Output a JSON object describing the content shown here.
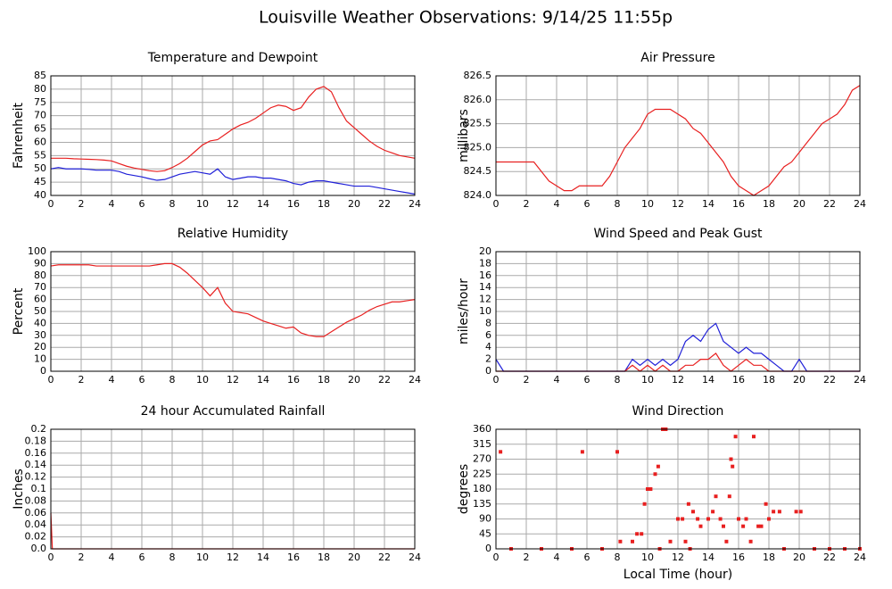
{
  "title": "Louisville Weather Observations: 9/14/25 11:55p",
  "chart_data": [
    {
      "type": "line",
      "title": "Temperature and Dewpoint",
      "ylabel": "Fahrenheit",
      "x": [
        0,
        0.5,
        1,
        1.5,
        2,
        2.5,
        3,
        3.5,
        4,
        4.5,
        5,
        5.5,
        6,
        6.5,
        7,
        7.5,
        8,
        8.5,
        9,
        9.5,
        10,
        10.5,
        11,
        11.5,
        12,
        12.5,
        13,
        13.5,
        14,
        14.5,
        15,
        15.5,
        16,
        16.5,
        17,
        17.5,
        18,
        18.5,
        19,
        19.5,
        20,
        20.5,
        21,
        21.5,
        22,
        22.5,
        23,
        23.5,
        24
      ],
      "series": [
        {
          "color": "#e82020",
          "values": [
            54,
            54,
            54,
            53.8,
            53.7,
            53.6,
            53.5,
            53.3,
            53,
            52,
            51,
            50.3,
            49.8,
            49.3,
            49,
            49.3,
            50.5,
            52,
            54,
            56.5,
            59,
            60.5,
            61,
            63,
            65,
            66.5,
            67.5,
            69,
            71,
            73,
            74,
            73.5,
            72,
            73,
            77,
            80,
            81,
            79,
            73,
            68,
            65.5,
            63,
            60.5,
            58.5,
            57,
            56,
            55,
            54.5,
            54
          ]
        },
        {
          "color": "#2020d8",
          "values": [
            50,
            50.5,
            50,
            50,
            50,
            49.8,
            49.5,
            49.5,
            49.5,
            49,
            48,
            47.5,
            47,
            46.3,
            45.7,
            46,
            47,
            48,
            48.5,
            49,
            48.5,
            48,
            50,
            47,
            46,
            46.5,
            47,
            47,
            46.5,
            46.5,
            46,
            45.5,
            44.5,
            44,
            45,
            45.5,
            45.5,
            45,
            44.5,
            44,
            43.5,
            43.5,
            43.5,
            43,
            42.5,
            42,
            41.5,
            41,
            40.5
          ]
        }
      ],
      "xlim": [
        0,
        24
      ],
      "xticks": [
        0,
        2,
        4,
        6,
        8,
        10,
        12,
        14,
        16,
        18,
        20,
        22,
        24
      ],
      "ylim": [
        40,
        85
      ],
      "yticks": [
        40,
        45,
        50,
        55,
        60,
        65,
        70,
        75,
        80,
        85
      ],
      "grid": true
    },
    {
      "type": "line",
      "title": "Air Pressure",
      "ylabel": "millibars",
      "x": [
        0,
        0.5,
        1,
        1.5,
        2,
        2.5,
        3,
        3.5,
        4,
        4.5,
        5,
        5.5,
        6,
        6.5,
        7,
        7.5,
        8,
        8.5,
        9,
        9.5,
        10,
        10.5,
        11,
        11.5,
        12,
        12.5,
        13,
        13.5,
        14,
        14.5,
        15,
        15.5,
        16,
        16.5,
        17,
        17.5,
        18,
        18.5,
        19,
        19.5,
        20,
        20.5,
        21,
        21.5,
        22,
        22.5,
        23,
        23.5,
        24
      ],
      "series": [
        {
          "color": "#e82020",
          "values": [
            824.7,
            824.7,
            824.7,
            824.7,
            824.7,
            824.7,
            824.5,
            824.3,
            824.2,
            824.1,
            824.1,
            824.2,
            824.2,
            824.2,
            824.2,
            824.4,
            824.7,
            825.0,
            825.2,
            825.4,
            825.7,
            825.8,
            825.8,
            825.8,
            825.7,
            825.6,
            825.4,
            825.3,
            825.1,
            824.9,
            824.7,
            824.4,
            824.2,
            824.1,
            824.0,
            824.1,
            824.2,
            824.4,
            824.6,
            824.7,
            824.9,
            825.1,
            825.3,
            825.5,
            825.6,
            825.7,
            825.9,
            826.2,
            826.3
          ]
        }
      ],
      "xlim": [
        0,
        24
      ],
      "xticks": [
        0,
        2,
        4,
        6,
        8,
        10,
        12,
        14,
        16,
        18,
        20,
        22,
        24
      ],
      "ylim": [
        824,
        826.5
      ],
      "yticks": [
        {
          "value": 824,
          "label": "824.0"
        },
        824.5,
        {
          "value": 825,
          "label": "825.0"
        },
        825.5,
        {
          "value": 826,
          "label": "826.0"
        },
        826.5
      ],
      "grid": true
    },
    {
      "type": "line",
      "title": "Relative Humidity",
      "ylabel": "Percent",
      "x": [
        0,
        0.5,
        1,
        1.5,
        2,
        2.5,
        3,
        3.5,
        4,
        4.5,
        5,
        5.5,
        6,
        6.5,
        7,
        7.5,
        8,
        8.5,
        9,
        9.5,
        10,
        10.5,
        11,
        11.5,
        12,
        12.5,
        13,
        13.5,
        14,
        14.5,
        15,
        15.5,
        16,
        16.5,
        17,
        17.5,
        18,
        18.5,
        19,
        19.5,
        20,
        20.5,
        21,
        21.5,
        22,
        22.5,
        23,
        23.5,
        24
      ],
      "series": [
        {
          "color": "#e82020",
          "values": [
            88,
            89,
            89,
            89,
            89,
            89,
            88,
            88,
            88,
            88,
            88,
            88,
            88,
            88,
            89,
            90,
            90,
            87,
            82,
            76,
            70,
            63,
            70,
            57,
            50,
            49,
            48,
            45,
            42,
            40,
            38,
            36,
            37,
            32,
            30,
            29,
            29,
            33,
            37,
            41,
            44,
            47,
            51,
            54,
            56,
            58,
            58,
            59,
            60
          ]
        }
      ],
      "xlim": [
        0,
        24
      ],
      "xticks": [
        0,
        2,
        4,
        6,
        8,
        10,
        12,
        14,
        16,
        18,
        20,
        22,
        24
      ],
      "ylim": [
        0,
        100
      ],
      "yticks": [
        0,
        10,
        20,
        30,
        40,
        50,
        60,
        70,
        80,
        90,
        100
      ],
      "grid": true
    },
    {
      "type": "line",
      "title": "Wind Speed and Peak Gust",
      "ylabel": "miles/hour",
      "x": [
        0,
        0.5,
        1,
        1.5,
        2,
        2.5,
        3,
        3.5,
        4,
        4.5,
        5,
        5.5,
        6,
        6.5,
        7,
        7.5,
        8,
        8.5,
        9,
        9.5,
        10,
        10.5,
        11,
        11.5,
        12,
        12.5,
        13,
        13.5,
        14,
        14.5,
        15,
        15.5,
        16,
        16.5,
        17,
        17.5,
        18,
        18.5,
        19,
        19.5,
        20,
        20.5,
        21,
        21.5,
        22,
        22.5,
        23,
        23.5,
        24
      ],
      "series": [
        {
          "color": "#2020d8",
          "values": [
            2,
            0,
            0,
            0,
            0,
            0,
            0,
            0,
            0,
            0,
            0,
            0,
            0,
            0,
            0,
            0,
            0,
            0,
            2,
            1,
            2,
            1,
            2,
            1,
            2,
            5,
            6,
            5,
            7,
            8,
            5,
            4,
            3,
            4,
            3,
            3,
            2,
            1,
            0,
            0,
            2,
            0,
            0,
            0,
            0,
            0,
            0,
            0,
            0
          ]
        },
        {
          "color": "#e82020",
          "values": [
            0,
            0,
            0,
            0,
            0,
            0,
            0,
            0,
            0,
            0,
            0,
            0,
            0,
            0,
            0,
            0,
            0,
            0,
            1,
            0,
            1,
            0,
            1,
            0,
            0,
            1,
            1,
            2,
            2,
            3,
            1,
            0,
            1,
            2,
            1,
            1,
            0,
            0,
            0,
            0,
            0,
            0,
            0,
            0,
            0,
            0,
            0,
            0,
            0
          ]
        }
      ],
      "xlim": [
        0,
        24
      ],
      "xticks": [
        0,
        2,
        4,
        6,
        8,
        10,
        12,
        14,
        16,
        18,
        20,
        22,
        24
      ],
      "ylim": [
        0,
        20
      ],
      "yticks": [
        0,
        2,
        4,
        6,
        8,
        10,
        12,
        14,
        16,
        18,
        20
      ],
      "grid": true
    },
    {
      "type": "line",
      "title": "24 hour Accumulated Rainfall",
      "ylabel": "Inches",
      "x": [
        0,
        0.1,
        24
      ],
      "series": [
        {
          "color": "#e82020",
          "values": [
            0.06,
            0,
            0
          ]
        }
      ],
      "xlim": [
        0,
        24
      ],
      "xticks": [
        0,
        2,
        4,
        6,
        8,
        10,
        12,
        14,
        16,
        18,
        20,
        22,
        24
      ],
      "ylim": [
        0,
        0.2
      ],
      "yticks": [
        {
          "value": 0,
          "label": "0.0"
        },
        0.02,
        0.04,
        0.06,
        0.08,
        0.1,
        0.12,
        0.14,
        0.16,
        0.18,
        0.2
      ],
      "grid": true
    },
    {
      "type": "scatter",
      "title": "Wind Direction",
      "ylabel": "degrees",
      "xlabel": "Local Time (hour)",
      "x": [
        0.3,
        5.7,
        8,
        8.2,
        9,
        9.3,
        9.6,
        9.8,
        10,
        10.2,
        10.5,
        10.7,
        11,
        11.2,
        11.5,
        12,
        12.3,
        12.5,
        12.7,
        13,
        13.3,
        13.5,
        14,
        14.3,
        14.5,
        14.8,
        15,
        15.2,
        15.4,
        15.5,
        15.6,
        15.8,
        16,
        16.3,
        16.5,
        16.8,
        17,
        17.3,
        17.5,
        17.8,
        18,
        18.3,
        18.7,
        19.8,
        20.1,
        1,
        3,
        5,
        7,
        10.8,
        12.8,
        19,
        21,
        22,
        23,
        24
      ],
      "series": [
        {
          "color": "#e82020",
          "values": [
            292,
            292,
            292,
            22,
            22,
            45,
            45,
            135,
            180,
            180,
            225,
            248,
            360,
            360,
            22,
            90,
            90,
            22,
            135,
            112,
            90,
            68,
            90,
            112,
            158,
            90,
            68,
            22,
            158,
            270,
            248,
            338,
            90,
            68,
            90,
            22,
            338,
            68,
            68,
            135,
            90,
            112,
            112,
            112,
            112,
            0,
            0,
            0,
            0,
            0,
            0,
            0,
            0,
            0,
            0,
            0
          ]
        }
      ],
      "xlim": [
        0,
        24
      ],
      "xticks": [
        0,
        2,
        4,
        6,
        8,
        10,
        12,
        14,
        16,
        18,
        20,
        22,
        24
      ],
      "ylim": [
        0,
        360
      ],
      "yticks": [
        0,
        45,
        90,
        135,
        180,
        225,
        270,
        315,
        360
      ],
      "grid": true
    }
  ]
}
